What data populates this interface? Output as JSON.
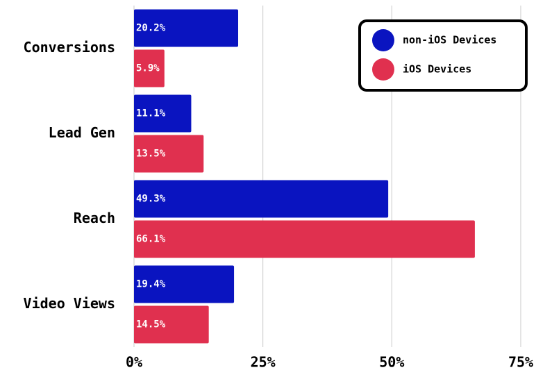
{
  "chart_data": {
    "type": "hbar",
    "categories": [
      "Conversions",
      "Lead Gen",
      "Reach",
      "Video Views"
    ],
    "series": [
      {
        "name": "non-iOS Devices",
        "color": "#0a14c0",
        "values": [
          20.2,
          11.1,
          49.3,
          19.4
        ],
        "value_labels": [
          "20.2%",
          "11.1%",
          "49.3%",
          "19.4%"
        ]
      },
      {
        "name": "iOS Devices",
        "color": "#e0304f",
        "values": [
          5.9,
          13.5,
          66.1,
          14.5
        ],
        "value_labels": [
          "5.9%",
          "13.5%",
          "66.1%",
          "14.5%"
        ]
      }
    ],
    "xlim": [
      0,
      75
    ],
    "xticks": [
      {
        "value": 0,
        "label": "0%"
      },
      {
        "value": 25,
        "label": "25%"
      },
      {
        "value": 50,
        "label": "50%"
      },
      {
        "value": 75,
        "label": "75%"
      }
    ],
    "grid": true,
    "legend": "top-right"
  }
}
